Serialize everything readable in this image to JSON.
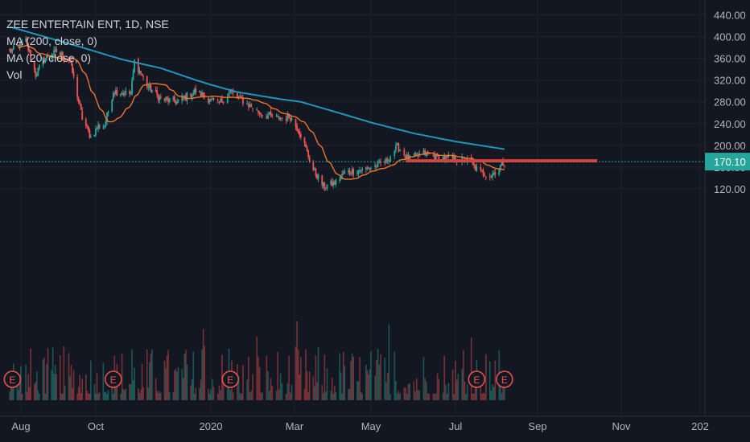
{
  "legend": {
    "title": "ZEE ENTERTAIN ENT, 1D, NSE",
    "ma200": "MA (200, close, 0)",
    "ma20": "MA (20, close, 0)",
    "vol": "Vol"
  },
  "last_price_label": "170.10",
  "earnings_marker": "E",
  "colors": {
    "background": "#131722",
    "grid": "#1e222d",
    "up": "#26a69a",
    "down": "#ef5350",
    "ma200": "#2196b8",
    "ma20": "#f0752a",
    "last_line": "#26a69a",
    "resistance": "#e53935",
    "axis_text": "#b2b5be"
  },
  "chart_data": {
    "type": "candlestick",
    "title": "ZEE ENTERTAIN ENT, 1D, NSE",
    "y_ticks": [
      "120.00",
      "160.00",
      "200.00",
      "240.00",
      "280.00",
      "320.00",
      "360.00",
      "400.00",
      "440.00"
    ],
    "ylim": [
      100,
      450
    ],
    "x_ticks": [
      "Aug",
      "Oct",
      "2020",
      "Mar",
      "May",
      "Jul",
      "Sep",
      "Nov",
      "202"
    ],
    "last_price": 170.1,
    "resistance_level": 170,
    "grid": true,
    "ohlc_anchors": [
      [
        "2019-07-23",
        372
      ],
      [
        "2019-08-05",
        392
      ],
      [
        "2019-08-13",
        330
      ],
      [
        "2019-08-20",
        360
      ],
      [
        "2019-08-30",
        372
      ],
      [
        "2019-09-10",
        355
      ],
      [
        "2019-09-20",
        250
      ],
      [
        "2019-09-27",
        215
      ],
      [
        "2019-10-03",
        235
      ],
      [
        "2019-10-08",
        236
      ],
      [
        "2019-10-15",
        300
      ],
      [
        "2019-10-29",
        295
      ],
      [
        "2019-11-01",
        355
      ],
      [
        "2019-11-11",
        310
      ],
      [
        "2019-11-22",
        285
      ],
      [
        "2019-12-05",
        280
      ],
      [
        "2019-12-20",
        300
      ],
      [
        "2020-01-06",
        275
      ],
      [
        "2020-01-15",
        298
      ],
      [
        "2020-02-05",
        260
      ],
      [
        "2020-02-17",
        250
      ],
      [
        "2020-02-27",
        252
      ],
      [
        "2020-03-06",
        220
      ],
      [
        "2020-03-16",
        155
      ],
      [
        "2020-03-24",
        125
      ],
      [
        "2020-04-02",
        130
      ],
      [
        "2020-04-10",
        150
      ],
      [
        "2020-04-24",
        155
      ],
      [
        "2020-05-04",
        162
      ],
      [
        "2020-05-12",
        170
      ],
      [
        "2020-05-20",
        198
      ],
      [
        "2020-05-28",
        175
      ],
      [
        "2020-06-08",
        185
      ],
      [
        "2020-06-18",
        178
      ],
      [
        "2020-06-30",
        175
      ],
      [
        "2020-07-10",
        172
      ],
      [
        "2020-07-20",
        150
      ],
      [
        "2020-07-28",
        145
      ],
      [
        "2020-08-07",
        170
      ]
    ],
    "ma200_anchors": [
      [
        "2019-07-23",
        418
      ],
      [
        "2019-08-20",
        400
      ],
      [
        "2019-09-20",
        380
      ],
      [
        "2019-10-22",
        358
      ],
      [
        "2019-11-22",
        342
      ],
      [
        "2019-12-20",
        320
      ],
      [
        "2020-01-20",
        298
      ],
      [
        "2020-02-20",
        285
      ],
      [
        "2020-03-06",
        280
      ],
      [
        "2020-04-02",
        262
      ],
      [
        "2020-05-04",
        240
      ],
      [
        "2020-06-01",
        222
      ],
      [
        "2020-07-01",
        207
      ],
      [
        "2020-08-07",
        193
      ]
    ],
    "earnings_dates": [
      "2019-07-25",
      "2019-10-15",
      "2020-01-15",
      "2020-07-17",
      "2020-08-07"
    ]
  }
}
